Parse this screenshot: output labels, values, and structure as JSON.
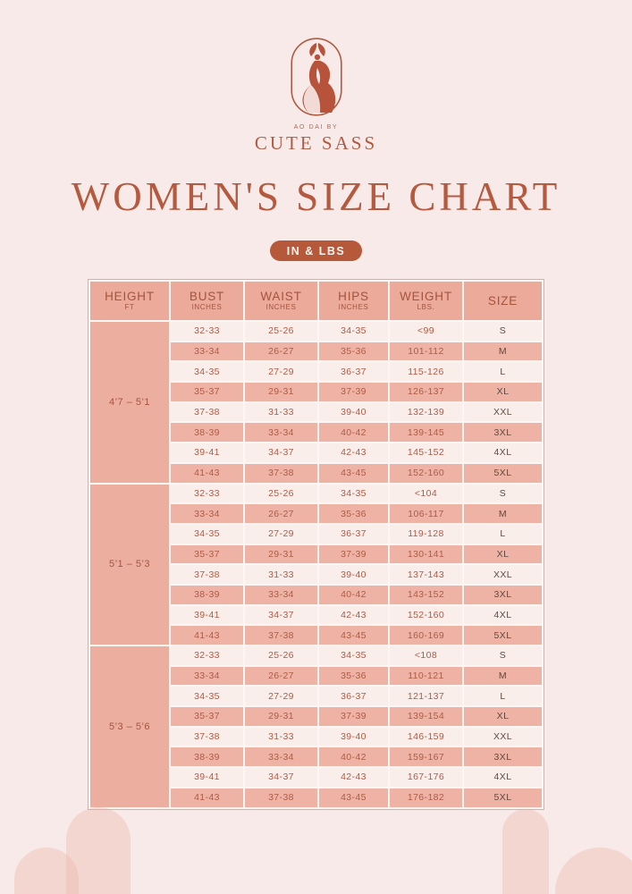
{
  "page": {
    "background": "#f8eae8",
    "accent": "#b45a41"
  },
  "brand": {
    "tagline": "AO DAI by",
    "name": "CUTE SASS",
    "logo_icon": "ao-dai-woman-icon"
  },
  "title": "WOMEN'S SIZE CHART",
  "unit_badge": "IN & LBS",
  "colors": {
    "accent_terracotta": "#b45a41",
    "badge_bg": "#b6593b",
    "table_header_bg": "#ebaa9a",
    "row_dark_bg": "#eeb3a4",
    "row_light_bg": "#f9eeea",
    "number_text": "#ae5b46",
    "size_text": "#5e4a43",
    "cell_divider": "#fdf6f3",
    "page_background": "#f8eae8",
    "arch_decoration": "#f2d8d2"
  },
  "table": {
    "headers": [
      {
        "label": "HEIGHT",
        "sub": "FT"
      },
      {
        "label": "BUST",
        "sub": "INCHES"
      },
      {
        "label": "WAIST",
        "sub": "INCHES"
      },
      {
        "label": "HIPS",
        "sub": "INCHES"
      },
      {
        "label": "WEIGHT",
        "sub": "LBS."
      },
      {
        "label": "SIZE",
        "sub": ""
      }
    ],
    "groups": [
      {
        "height": "4’7 – 5’1",
        "rows": [
          {
            "bust": "32-33",
            "waist": "25-26",
            "hips": "34-35",
            "weight": "<99",
            "size": "S"
          },
          {
            "bust": "33-34",
            "waist": "26-27",
            "hips": "35-36",
            "weight": "101-112",
            "size": "M"
          },
          {
            "bust": "34-35",
            "waist": "27-29",
            "hips": "36-37",
            "weight": "115-126",
            "size": "L"
          },
          {
            "bust": "35-37",
            "waist": "29-31",
            "hips": "37-39",
            "weight": "126-137",
            "size": "XL"
          },
          {
            "bust": "37-38",
            "waist": "31-33",
            "hips": "39-40",
            "weight": "132-139",
            "size": "XXL"
          },
          {
            "bust": "38-39",
            "waist": "33-34",
            "hips": "40-42",
            "weight": "139-145",
            "size": "3XL"
          },
          {
            "bust": "39-41",
            "waist": "34-37",
            "hips": "42-43",
            "weight": "145-152",
            "size": "4XL"
          },
          {
            "bust": "41-43",
            "waist": "37-38",
            "hips": "43-45",
            "weight": "152-160",
            "size": "5XL"
          }
        ]
      },
      {
        "height": "5’1 – 5’3",
        "rows": [
          {
            "bust": "32-33",
            "waist": "25-26",
            "hips": "34-35",
            "weight": "<104",
            "size": "S"
          },
          {
            "bust": "33-34",
            "waist": "26-27",
            "hips": "35-36",
            "weight": "106-117",
            "size": "M"
          },
          {
            "bust": "34-35",
            "waist": "27-29",
            "hips": "36-37",
            "weight": "119-128",
            "size": "L"
          },
          {
            "bust": "35-37",
            "waist": "29-31",
            "hips": "37-39",
            "weight": "130-141",
            "size": "XL"
          },
          {
            "bust": "37-38",
            "waist": "31-33",
            "hips": "39-40",
            "weight": "137-143",
            "size": "XXL"
          },
          {
            "bust": "38-39",
            "waist": "33-34",
            "hips": "40-42",
            "weight": "143-152",
            "size": "3XL"
          },
          {
            "bust": "39-41",
            "waist": "34-37",
            "hips": "42-43",
            "weight": "152-160",
            "size": "4XL"
          },
          {
            "bust": "41-43",
            "waist": "37-38",
            "hips": "43-45",
            "weight": "160-169",
            "size": "5XL"
          }
        ]
      },
      {
        "height": "5’3 – 5’6",
        "rows": [
          {
            "bust": "32-33",
            "waist": "25-26",
            "hips": "34-35",
            "weight": "<108",
            "size": "S"
          },
          {
            "bust": "33-34",
            "waist": "26-27",
            "hips": "35-36",
            "weight": "110-121",
            "size": "M"
          },
          {
            "bust": "34-35",
            "waist": "27-29",
            "hips": "36-37",
            "weight": "121-137",
            "size": "L"
          },
          {
            "bust": "35-37",
            "waist": "29-31",
            "hips": "37-39",
            "weight": "139-154",
            "size": "XL"
          },
          {
            "bust": "37-38",
            "waist": "31-33",
            "hips": "39-40",
            "weight": "146-159",
            "size": "XXL"
          },
          {
            "bust": "38-39",
            "waist": "33-34",
            "hips": "40-42",
            "weight": "159-167",
            "size": "3XL"
          },
          {
            "bust": "39-41",
            "waist": "34-37",
            "hips": "42-43",
            "weight": "167-176",
            "size": "4XL"
          },
          {
            "bust": "41-43",
            "waist": "37-38",
            "hips": "43-45",
            "weight": "176-182",
            "size": "5XL"
          }
        ]
      }
    ]
  }
}
